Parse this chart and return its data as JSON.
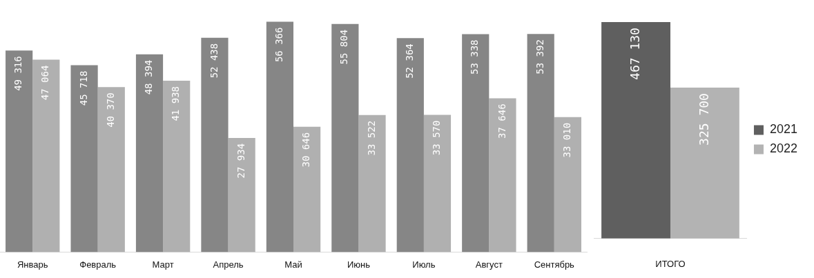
{
  "chart_data": [
    {
      "type": "bar",
      "categories": [
        "Январь",
        "Февраль",
        "Март",
        "Апрель",
        "Май",
        "Июнь",
        "Июль",
        "Август",
        "Сентябрь"
      ],
      "series": [
        {
          "color": "#868686",
          "values": [
            49316,
            45718,
            48394,
            52438,
            56366,
            55804,
            52364,
            53338,
            53392
          ]
        },
        {
          "color": "#b0b0b0",
          "values": [
            47064,
            40370,
            41938,
            27934,
            30646,
            33522,
            33570,
            37646,
            33010
          ]
        }
      ],
      "tick_labels": "x",
      "data_labels": true,
      "legend": false
    },
    {
      "type": "bar",
      "categories": [
        null
      ],
      "xlabel": "ИТОГО",
      "series": [
        {
          "name": "2021",
          "color": "#5f5f5f",
          "values": [
            467130
          ]
        },
        {
          "name": "2022",
          "color": "#b3b3b3",
          "values": [
            325700
          ]
        }
      ],
      "tick_labels": "x",
      "data_labels": true,
      "legend": "right"
    }
  ]
}
